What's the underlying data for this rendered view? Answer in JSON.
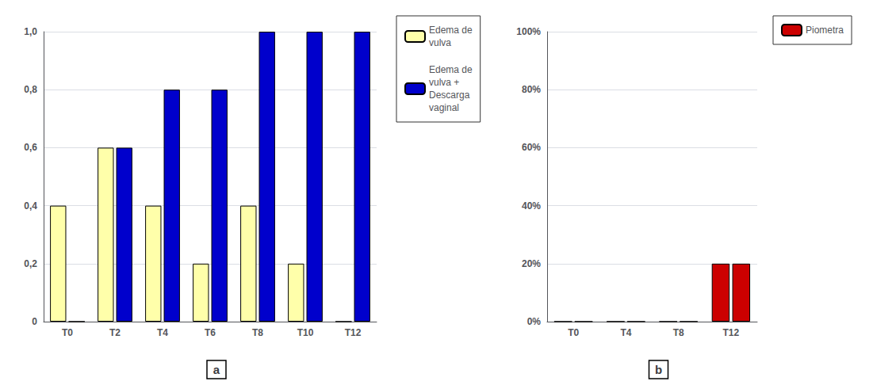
{
  "chart_data": [
    {
      "type": "bar",
      "title": "a",
      "categories": [
        "T0",
        "T2",
        "T4",
        "T6",
        "T8",
        "T10",
        "T12"
      ],
      "series": [
        {
          "name": "Edema de\nvulva",
          "color": "#FFFFAA",
          "values": [
            0.4,
            0.6,
            0.4,
            0.2,
            0.4,
            0.2,
            0.0
          ]
        },
        {
          "name": "Edema de\nvulva +\nDescarga\nvaginal",
          "color": "#0000CC",
          "values": [
            0.0,
            0.6,
            0.8,
            0.8,
            1.0,
            1.0,
            1.0
          ]
        }
      ],
      "ylim": [
        0,
        1.0
      ],
      "yticks": [
        0,
        {
          "value": 0.2,
          "label": "0,2"
        },
        {
          "value": 0.4,
          "label": "0,4"
        },
        {
          "value": 0.6,
          "label": "0,6"
        },
        {
          "value": 0.8,
          "label": "0,8"
        },
        {
          "value": 1.0,
          "label": "1,0"
        }
      ],
      "grid": true,
      "legend": "right"
    },
    {
      "type": "bar",
      "title": "b",
      "categories": [
        "T0",
        "T4",
        "T8",
        "T12"
      ],
      "series": [
        {
          "name": "Piometra",
          "color": "#CC0000",
          "values": [
            0.0,
            0.0,
            0.0,
            0.2
          ]
        },
        {
          "color": "#CC0000",
          "values": [
            0.0,
            0.0,
            0.0,
            0.2
          ]
        }
      ],
      "ylim": [
        0.0,
        1.0
      ],
      "yticks": [
        {
          "value": 0.0,
          "label": "0%"
        },
        {
          "value": 0.2,
          "label": "20%"
        },
        {
          "value": 0.4,
          "label": "40%"
        },
        {
          "value": 0.6,
          "label": "60%"
        },
        {
          "value": 0.8,
          "label": "80%"
        },
        {
          "value": 1.0,
          "label": "100%"
        }
      ],
      "grid": true,
      "legend": "right"
    }
  ]
}
